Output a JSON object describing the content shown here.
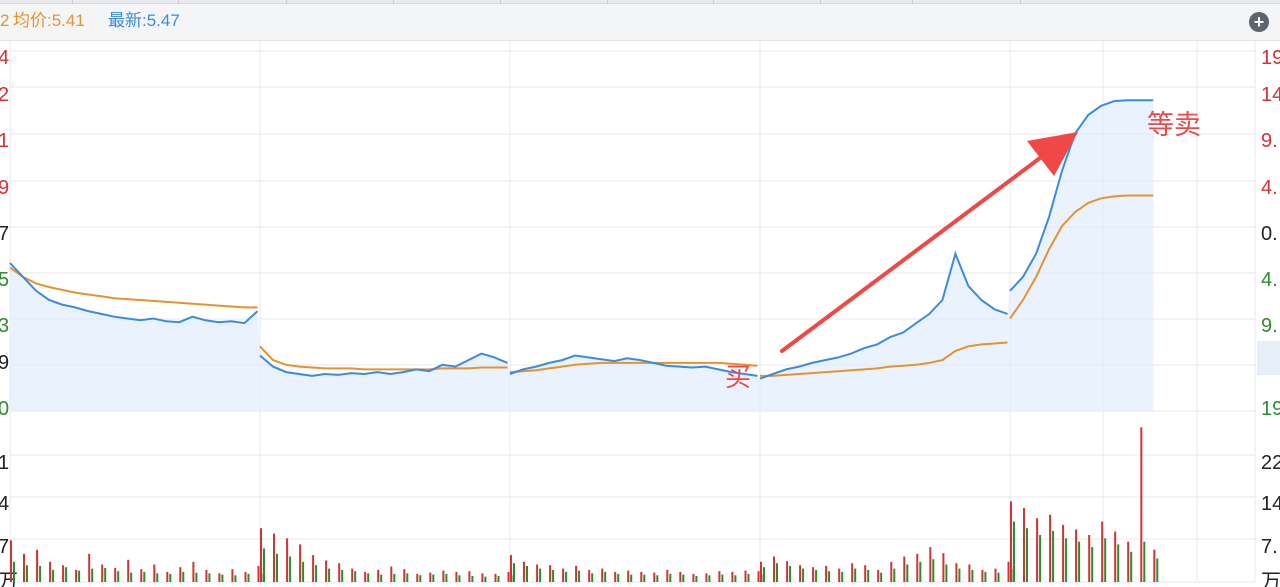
{
  "header": {
    "cut_label": "2",
    "avg_label": "均价:5.41",
    "last_label": "最新:5.47",
    "zoom_icon": "plus-circle-icon",
    "zoom_symbol": "+"
  },
  "colors": {
    "price_line": "#3b8be0",
    "avg_line": "#e8922e",
    "area_fill": "#dcebfb",
    "up": "#d93030",
    "down": "#2e8b2e",
    "neutral": "#222222",
    "grid": "#e6e8eb",
    "annotation": "#f04747"
  },
  "annotations": {
    "buy_label": "买",
    "sell_label": "等卖"
  },
  "chart_data": [
    {
      "type": "line",
      "title": "",
      "xlabel": "",
      "ylabel": "",
      "days": 5,
      "series": [
        {
          "values": [
            6.1,
            5.95,
            5.8,
            5.7,
            5.65,
            5.62,
            5.58,
            5.55,
            5.52,
            5.5,
            5.48,
            5.5,
            5.47,
            5.46,
            5.52,
            5.48,
            5.46,
            5.47,
            5.45,
            5.58,
            5.1,
            4.98,
            4.92,
            4.9,
            4.88,
            4.9,
            4.89,
            4.91,
            4.9,
            4.92,
            4.9,
            4.92,
            4.95,
            4.93,
            5.0,
            4.98,
            5.05,
            5.12,
            5.08,
            5.02,
            4.9,
            4.95,
            4.98,
            5.02,
            5.05,
            5.1,
            5.08,
            5.06,
            5.04,
            5.07,
            5.05,
            5.02,
            4.99,
            4.98,
            4.97,
            4.98,
            4.95,
            4.92,
            4.9,
            4.88,
            4.85,
            4.9,
            4.95,
            4.98,
            5.02,
            5.05,
            5.08,
            5.12,
            5.18,
            5.22,
            5.3,
            5.35,
            5.45,
            5.55,
            5.7,
            6.2,
            5.85,
            5.7,
            5.6,
            5.55,
            5.8,
            5.95,
            6.2,
            6.6,
            7.1,
            7.5,
            7.7,
            7.8,
            7.85,
            7.86,
            7.86,
            7.86
          ]
        },
        {
          "values": [
            6.05,
            5.95,
            5.88,
            5.84,
            5.81,
            5.78,
            5.76,
            5.74,
            5.72,
            5.71,
            5.7,
            5.69,
            5.68,
            5.67,
            5.66,
            5.65,
            5.64,
            5.63,
            5.62,
            5.62,
            5.2,
            5.05,
            5.0,
            4.98,
            4.97,
            4.96,
            4.96,
            4.96,
            4.95,
            4.95,
            4.95,
            4.95,
            4.95,
            4.95,
            4.96,
            4.96,
            4.96,
            4.97,
            4.97,
            4.97,
            4.92,
            4.93,
            4.94,
            4.96,
            4.98,
            5.0,
            5.01,
            5.02,
            5.02,
            5.02,
            5.02,
            5.02,
            5.02,
            5.02,
            5.02,
            5.02,
            5.02,
            5.01,
            5.0,
            4.99,
            4.88,
            4.88,
            4.89,
            4.9,
            4.91,
            4.92,
            4.93,
            4.94,
            4.95,
            4.96,
            4.98,
            4.99,
            5.0,
            5.02,
            5.05,
            5.15,
            5.2,
            5.22,
            5.23,
            5.24,
            5.5,
            5.7,
            5.95,
            6.25,
            6.5,
            6.65,
            6.75,
            6.8,
            6.82,
            6.83,
            6.83,
            6.83
          ]
        }
      ],
      "ylim": [
        4.5,
        8.5
      ]
    },
    {
      "type": "bar",
      "days": 5,
      "ylim": [
        0,
        2500
      ],
      "values_up": [
        620,
        420,
        480,
        300,
        250,
        180,
        420,
        260,
        210,
        330,
        190,
        260,
        150,
        220,
        300,
        180,
        130,
        190,
        150,
        240,
        800,
        720,
        650,
        560,
        400,
        320,
        280,
        200,
        150,
        180,
        230,
        190,
        120,
        140,
        170,
        150,
        160,
        130,
        120,
        150,
        400,
        300,
        260,
        250,
        200,
        240,
        180,
        200,
        150,
        170,
        150,
        140,
        180,
        150,
        120,
        130,
        160,
        150,
        170,
        160,
        300,
        380,
        310,
        250,
        220,
        240,
        200,
        280,
        250,
        180,
        300,
        380,
        420,
        520,
        430,
        280,
        260,
        180,
        200,
        300,
        1200,
        1100,
        950,
        1000,
        850,
        780,
        700,
        900,
        750,
        600,
        2300,
        480
      ],
      "values_down": [
        300,
        250,
        240,
        180,
        220,
        170,
        200,
        210,
        160,
        140,
        150,
        130,
        120,
        150,
        140,
        130,
        110,
        100,
        120,
        130,
        500,
        420,
        380,
        300,
        250,
        200,
        180,
        160,
        130,
        110,
        120,
        130,
        100,
        110,
        120,
        100,
        90,
        80,
        90,
        100,
        280,
        240,
        200,
        180,
        150,
        170,
        130,
        150,
        120,
        110,
        110,
        100,
        120,
        110,
        90,
        100,
        110,
        100,
        120,
        110,
        220,
        280,
        240,
        200,
        180,
        160,
        150,
        200,
        180,
        140,
        200,
        260,
        300,
        340,
        260,
        200,
        180,
        150,
        140,
        200,
        900,
        800,
        700,
        760,
        650,
        600,
        520,
        650,
        560,
        450,
        600,
        350
      ]
    }
  ]
}
